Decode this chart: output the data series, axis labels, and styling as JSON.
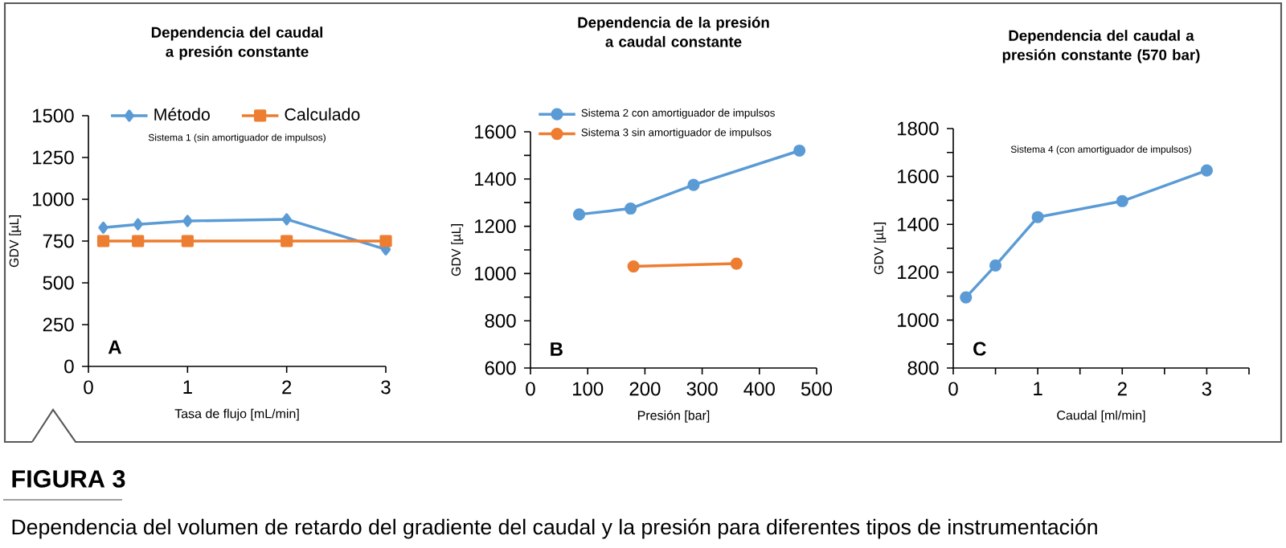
{
  "chart_data": [
    {
      "type": "line",
      "title": "Dependencia del caudal a presión constante",
      "xlabel": "Tasa de flujo [mL/min]",
      "ylabel": "GDV [µL]",
      "xlim": [
        0,
        3
      ],
      "xticks": [
        0,
        1,
        2,
        3
      ],
      "ylim": [
        0,
        1500
      ],
      "yticks": [
        0,
        250,
        500,
        750,
        1000,
        1250,
        1500
      ],
      "legend": "top",
      "annotations": [
        "Sistema 1 (sin amortiguador de impulsos)",
        "A"
      ],
      "series": [
        {
          "name": "Método",
          "color": "#5b9bd5",
          "marker": "diamond",
          "x": [
            0.15,
            0.5,
            1,
            2,
            3
          ],
          "values": [
            830,
            850,
            870,
            880,
            700
          ]
        },
        {
          "name": "Calculado",
          "color": "#ed7d31",
          "marker": "square",
          "x": [
            0.15,
            0.5,
            1,
            2,
            3
          ],
          "values": [
            750,
            750,
            750,
            750,
            750
          ]
        }
      ]
    },
    {
      "type": "line",
      "title": "Dependencia de la presión a caudal constante",
      "xlabel": "Presión [bar]",
      "ylabel": "GDV [µL]",
      "xlim": [
        0,
        500
      ],
      "xticks": [
        0,
        100,
        200,
        300,
        400,
        500
      ],
      "ylim": [
        600,
        1600
      ],
      "yticks": [
        600,
        {
          "value": 700,
          "label": null
        },
        800,
        {
          "value": 900,
          "label": null
        },
        1000,
        {
          "value": 1100,
          "label": null
        },
        1200,
        {
          "value": 1300,
          "label": null
        },
        1400,
        {
          "value": 1500,
          "label": null
        },
        1600
      ],
      "legend": "top left",
      "marker": "circle",
      "annotations": [
        "B"
      ],
      "series": [
        {
          "name": "Sistema 2 con amortiguador de impulsos",
          "color": "#5b9bd5",
          "x": [
            85,
            175,
            285,
            470
          ],
          "values": [
            1250,
            1275,
            1375,
            1520
          ]
        },
        {
          "name": "Sistema 3 sin amortiguador de impulsos",
          "color": "#ed7d31",
          "x": [
            180,
            360
          ],
          "values": [
            1030,
            1042
          ]
        }
      ]
    },
    {
      "type": "line",
      "title": "Dependencia del caudal a presión constante (570 bar)",
      "xlabel": "Caudal [ml/min]",
      "ylabel": "GDV [µL]",
      "xlim": [
        0,
        3.5
      ],
      "xticks": [
        0,
        {
          "value": 0.5,
          "label": null
        },
        1,
        {
          "value": 1.5,
          "label": null
        },
        2,
        {
          "value": 2.5,
          "label": null
        },
        3,
        {
          "value": 3.5,
          "label": null
        }
      ],
      "ylim": [
        800,
        1800
      ],
      "yticks": [
        800,
        {
          "value": 900,
          "label": null
        },
        1000,
        {
          "value": 1100,
          "label": null
        },
        1200,
        {
          "value": 1300,
          "label": null
        },
        1400,
        {
          "value": 1500,
          "label": null
        },
        1600,
        {
          "value": 1700,
          "label": null
        },
        1800
      ],
      "marker": "circle",
      "annotations": [
        "Sistema 4 (con amortiguador de impulsos)",
        "C"
      ],
      "series": [
        {
          "color": "#5b9bd5",
          "x": [
            0.15,
            0.5,
            1,
            2,
            3
          ],
          "values": [
            1095,
            1228,
            1430,
            1497,
            1625
          ]
        }
      ]
    },
    {
      "type": "other",
      "title": "FIGURA 3",
      "subtitle": "Dependencia del volumen de retardo del gradiente del caudal y la presión para diferentes tipos de instrumentación"
    }
  ]
}
